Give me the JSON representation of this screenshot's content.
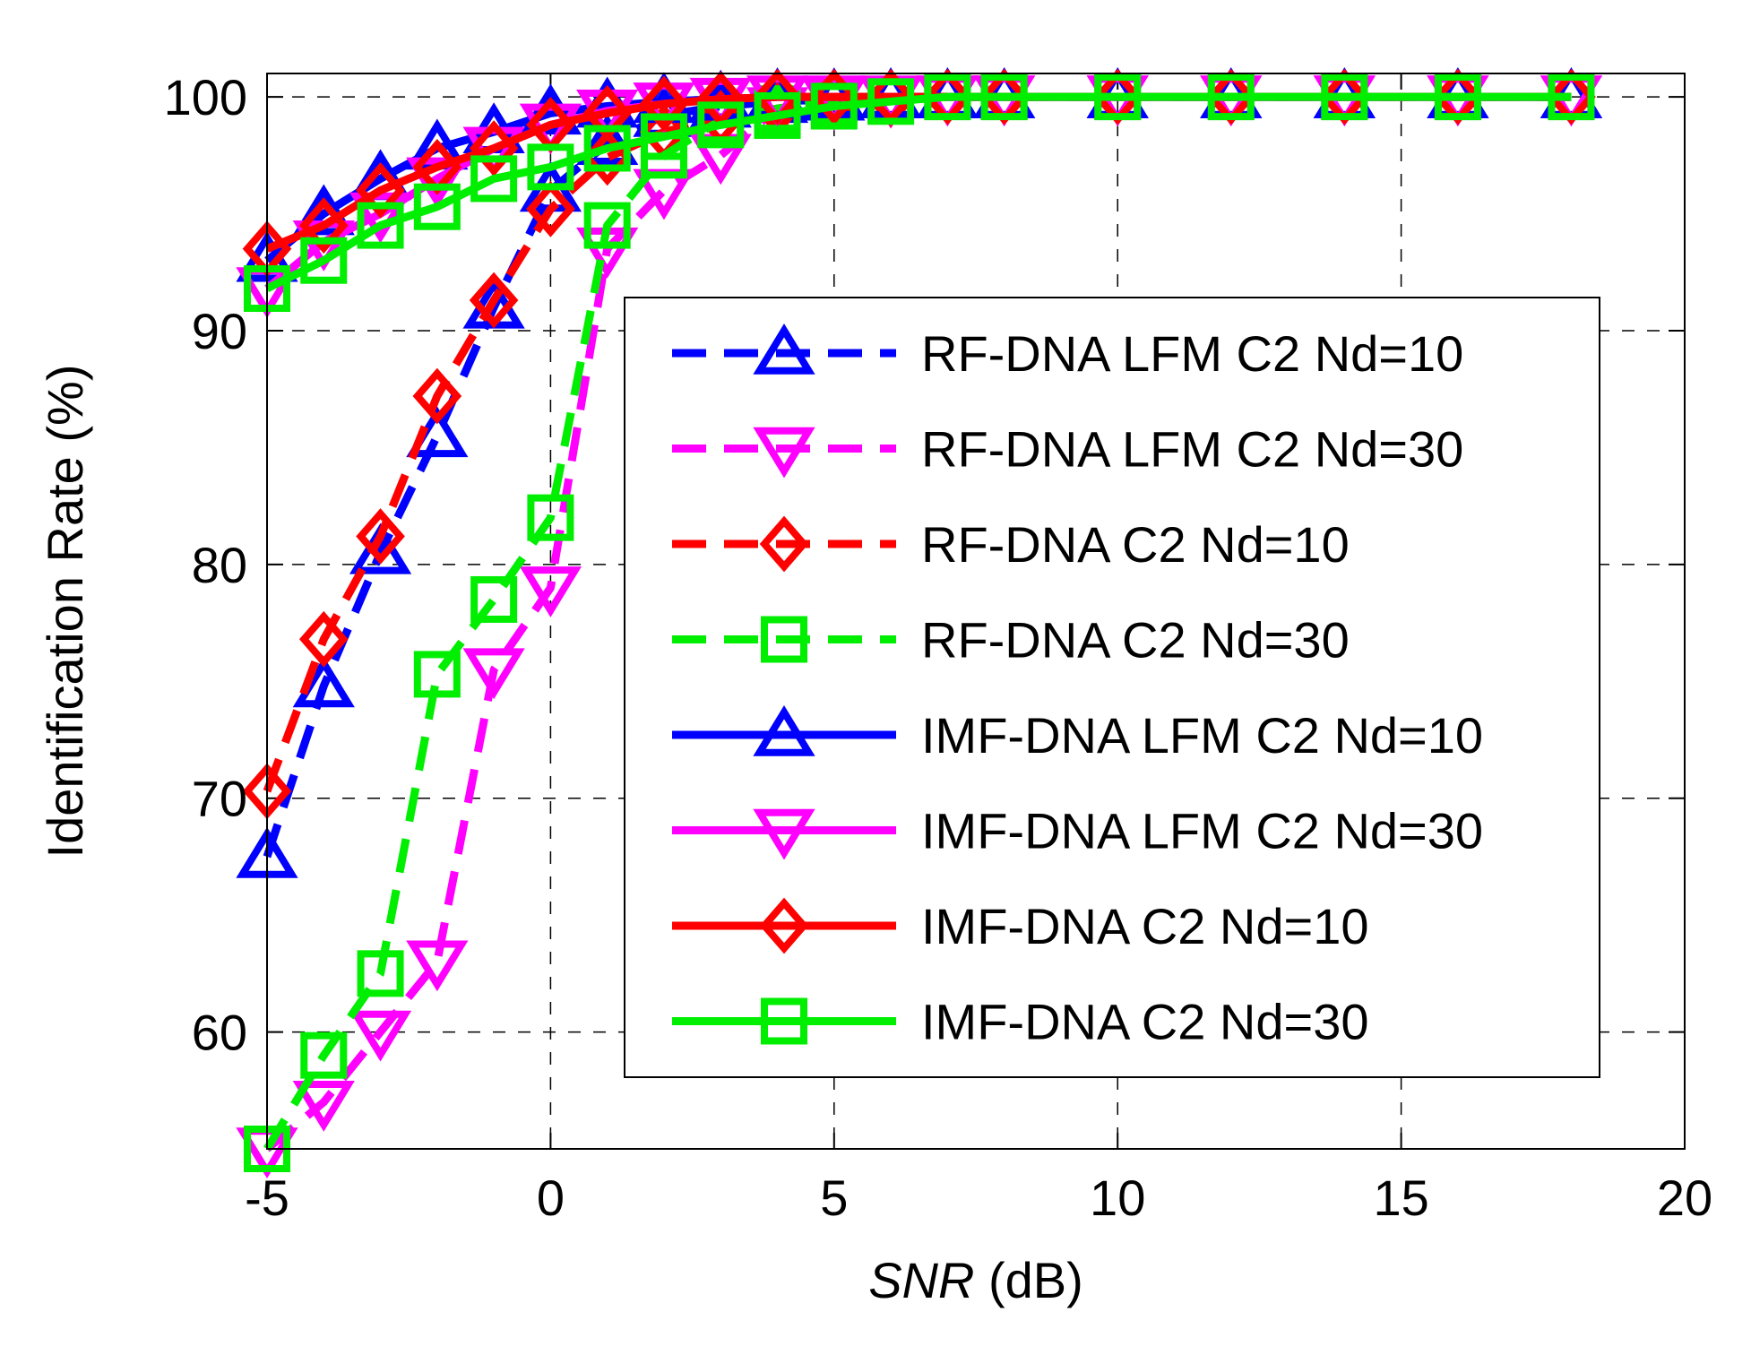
{
  "chart_data": {
    "type": "line",
    "title": "",
    "xlabel": "SNR",
    "xlabel_unit": " (dB)",
    "ylabel": "Identification Rate (%)",
    "xlim": [
      -5,
      20
    ],
    "ylim": [
      55,
      101
    ],
    "xticks": [
      -5,
      0,
      5,
      10,
      15,
      20
    ],
    "yticks": [
      60,
      70,
      80,
      90,
      100
    ],
    "grid": "dashed",
    "legend_position": "center-right",
    "series": [
      {
        "name": "RF-DNA LFM C2 Nd=10",
        "color": "#0000ff",
        "dash": true,
        "marker": "triangle-up",
        "x": [
          -5,
          -4,
          -3,
          -2,
          -1,
          0,
          1,
          2,
          3,
          4,
          5,
          6,
          7,
          8,
          10,
          12,
          14,
          16,
          18
        ],
        "y": [
          67.5,
          74.8,
          80.5,
          85.5,
          91.0,
          96.0,
          98.0,
          99.2,
          99.6,
          99.8,
          99.9,
          100,
          100,
          100,
          100,
          100,
          100,
          100,
          100
        ]
      },
      {
        "name": "RF-DNA LFM C2 Nd=30",
        "color": "#ff00ff",
        "dash": true,
        "marker": "triangle-down",
        "x": [
          -5,
          -4,
          -3,
          -2,
          -1,
          0,
          1,
          2,
          3,
          4,
          5,
          6,
          7,
          8,
          10,
          12,
          14,
          16,
          18
        ],
        "y": [
          55.0,
          57.0,
          60.0,
          63.0,
          75.5,
          79.0,
          93.5,
          96.0,
          97.5,
          99.5,
          99.8,
          99.9,
          100,
          100,
          100,
          100,
          100,
          100,
          100
        ]
      },
      {
        "name": "RF-DNA C2 Nd=10",
        "color": "#ff0000",
        "dash": true,
        "marker": "diamond",
        "x": [
          -5,
          -4,
          -3,
          -2,
          -1,
          0,
          1,
          2,
          3,
          4,
          5,
          6,
          7,
          8,
          10,
          12,
          14,
          16,
          18
        ],
        "y": [
          70.3,
          76.8,
          81.2,
          87.2,
          91.3,
          95.2,
          97.4,
          98.5,
          99.1,
          99.5,
          99.8,
          99.9,
          100,
          100,
          100,
          100,
          100,
          100,
          100
        ]
      },
      {
        "name": "RF-DNA C2 Nd=30",
        "color": "#00ee00",
        "dash": true,
        "marker": "square",
        "x": [
          -5,
          -4,
          -3,
          -2,
          -1,
          0,
          1,
          2,
          3,
          4,
          5,
          6,
          7,
          8,
          10,
          12,
          14,
          16,
          18
        ],
        "y": [
          55.0,
          59.0,
          62.5,
          75.3,
          78.5,
          82.0,
          94.5,
          97.5,
          99.0,
          99.5,
          99.8,
          99.9,
          100,
          100,
          100,
          100,
          100,
          100,
          100
        ]
      },
      {
        "name": "IMF-DNA LFM C2 Nd=10",
        "color": "#0000ff",
        "dash": false,
        "marker": "triangle-up",
        "x": [
          -5,
          -4,
          -3,
          -2,
          -1,
          0,
          1,
          2,
          3,
          4,
          5,
          6,
          7,
          8,
          10,
          12,
          14,
          16,
          18
        ],
        "y": [
          93.0,
          95.0,
          96.5,
          97.8,
          98.5,
          99.3,
          99.6,
          99.8,
          99.9,
          100,
          100,
          100,
          100,
          100,
          100,
          100,
          100,
          100,
          100
        ]
      },
      {
        "name": "IMF-DNA LFM C2 Nd=30",
        "color": "#ff00ff",
        "dash": false,
        "marker": "triangle-down",
        "x": [
          -5,
          -4,
          -3,
          -2,
          -1,
          0,
          1,
          2,
          3,
          4,
          5,
          6,
          7,
          8,
          10,
          12,
          14,
          16,
          18
        ],
        "y": [
          91.8,
          93.8,
          95.0,
          96.5,
          97.8,
          98.8,
          99.4,
          99.7,
          99.9,
          100,
          100,
          100,
          100,
          100,
          100,
          100,
          100,
          100,
          100
        ]
      },
      {
        "name": "IMF-DNA C2 Nd=10",
        "color": "#ff0000",
        "dash": false,
        "marker": "diamond",
        "x": [
          -5,
          -4,
          -3,
          -2,
          -1,
          0,
          1,
          2,
          3,
          4,
          5,
          6,
          7,
          8,
          10,
          12,
          14,
          16,
          18
        ],
        "y": [
          93.5,
          94.5,
          96.0,
          97.0,
          97.8,
          98.8,
          99.3,
          99.7,
          99.9,
          100,
          100,
          100,
          100,
          100,
          100,
          100,
          100,
          100,
          100
        ]
      },
      {
        "name": "IMF-DNA C2 Nd=30",
        "color": "#00ee00",
        "dash": false,
        "marker": "square",
        "x": [
          -5,
          -4,
          -3,
          -2,
          -1,
          0,
          1,
          2,
          3,
          4,
          5,
          6,
          7,
          8,
          10,
          12,
          14,
          16,
          18
        ],
        "y": [
          91.8,
          93.0,
          94.5,
          95.3,
          96.5,
          97.0,
          97.8,
          98.3,
          98.8,
          99.2,
          99.6,
          99.8,
          100,
          100,
          100,
          100,
          100,
          100,
          100
        ]
      }
    ]
  }
}
